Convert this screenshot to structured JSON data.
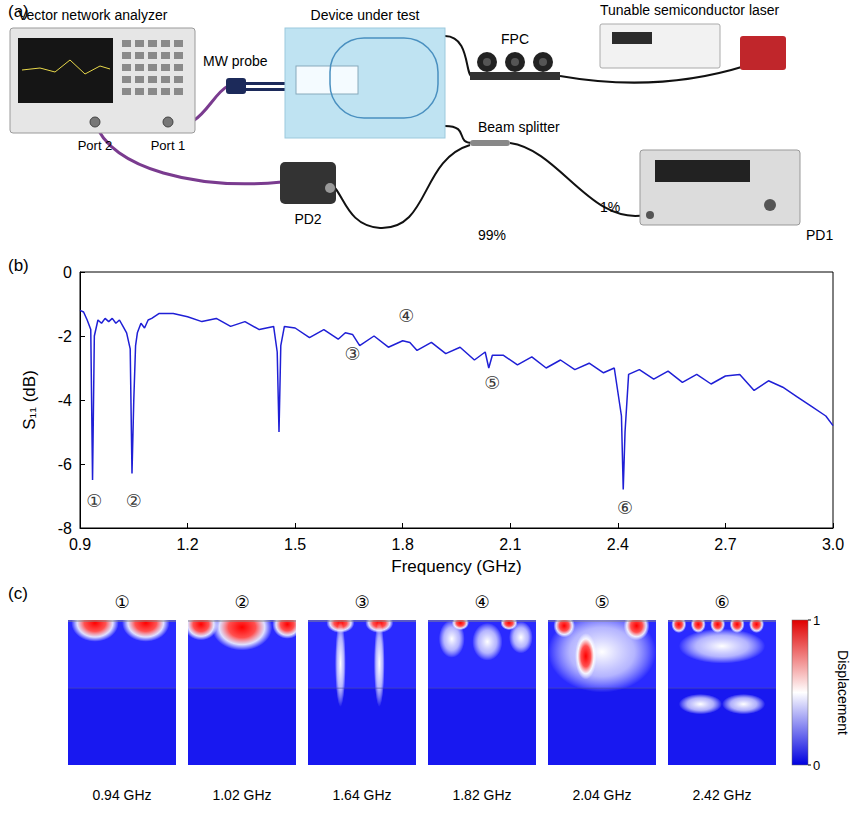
{
  "panel_labels": {
    "a": "(a)",
    "b": "(b)",
    "c": "(c)"
  },
  "setup": {
    "vna": "Vector network analyzer",
    "port2": "Port 2",
    "port1": "Port 1",
    "probe": "MW probe",
    "dut": "Device under test",
    "fpc": "FPC",
    "laser": "Tunable semiconductor laser",
    "splitter": "Beam splitter",
    "pd2": "PD2",
    "pd1": "PD1",
    "split_high": "99%",
    "split_low": "1%"
  },
  "chart_data": {
    "type": "line",
    "x_label": "Frequency (GHz)",
    "y_label": "S₁₁ (dB)",
    "xlim": [
      0.9,
      3.0
    ],
    "xticks": [
      0.9,
      1.2,
      1.5,
      1.8,
      2.1,
      2.4,
      2.7,
      {
        "value": 3.0,
        "label": "3.0"
      }
    ],
    "ylim": [
      -8,
      0
    ],
    "yticks": [
      -8,
      -6,
      -4,
      -2,
      0
    ],
    "grid": false,
    "series": [
      {
        "color": "#1f1fd6",
        "x": [
          0.9,
          0.91,
          0.92,
          0.93,
          0.935,
          0.94,
          0.95,
          0.96,
          0.97,
          0.98,
          0.99,
          1.0,
          1.01,
          1.02,
          1.03,
          1.04,
          1.045,
          1.05,
          1.055,
          1.06,
          1.07,
          1.08,
          1.09,
          1.1,
          1.12,
          1.14,
          1.16,
          1.2,
          1.24,
          1.28,
          1.32,
          1.36,
          1.4,
          1.44,
          1.45,
          1.455,
          1.46,
          1.47,
          1.5,
          1.54,
          1.58,
          1.62,
          1.64,
          1.66,
          1.68,
          1.72,
          1.76,
          1.8,
          1.82,
          1.84,
          1.88,
          1.92,
          1.96,
          2.0,
          2.03,
          2.04,
          2.05,
          2.08,
          2.12,
          2.16,
          2.2,
          2.24,
          2.28,
          2.32,
          2.36,
          2.39,
          2.41,
          2.415,
          2.42,
          2.43,
          2.46,
          2.5,
          2.54,
          2.58,
          2.62,
          2.66,
          2.7,
          2.74,
          2.78,
          2.82,
          2.86,
          2.9,
          2.94,
          2.98,
          3.0
        ],
        "values": [
          -1.2,
          -1.25,
          -1.5,
          -1.8,
          -6.5,
          -2.0,
          -1.5,
          -1.6,
          -1.45,
          -1.55,
          -1.45,
          -1.6,
          -1.5,
          -1.7,
          -1.9,
          -2.4,
          -6.3,
          -4.0,
          -2.3,
          -1.9,
          -1.6,
          -1.75,
          -1.5,
          -1.45,
          -1.3,
          -1.3,
          -1.3,
          -1.4,
          -1.55,
          -1.45,
          -1.7,
          -1.55,
          -1.8,
          -1.7,
          -2.5,
          -5.0,
          -2.3,
          -1.7,
          -1.75,
          -2.05,
          -1.8,
          -2.1,
          -1.9,
          -1.95,
          -2.3,
          -2.0,
          -2.35,
          -2.15,
          -2.2,
          -2.45,
          -2.2,
          -2.55,
          -2.35,
          -2.75,
          -2.5,
          -3.0,
          -2.6,
          -2.6,
          -2.9,
          -2.65,
          -3.0,
          -2.75,
          -3.05,
          -2.85,
          -3.15,
          -3.0,
          -4.5,
          -6.8,
          -5.0,
          -3.2,
          -3.05,
          -3.35,
          -3.1,
          -3.45,
          -3.2,
          -3.5,
          -3.25,
          -3.2,
          -3.7,
          -3.4,
          -3.6,
          -3.9,
          -4.2,
          -4.5,
          -4.8
        ]
      }
    ],
    "annotations": [
      {
        "text": "①",
        "x": 0.94,
        "y": -7.15
      },
      {
        "text": "②",
        "x": 1.05,
        "y": -7.15
      },
      {
        "text": "③",
        "x": 1.66,
        "y": -2.55
      },
      {
        "text": "④",
        "x": 1.81,
        "y": -1.35
      },
      {
        "text": "⑤",
        "x": 2.05,
        "y": -3.45
      },
      {
        "text": "⑥",
        "x": 2.42,
        "y": -7.35
      }
    ]
  },
  "modes": {
    "items": [
      {
        "label": "①",
        "frequency": "0.94 GHz"
      },
      {
        "label": "②",
        "frequency": "1.02 GHz"
      },
      {
        "label": "③",
        "frequency": "1.64 GHz"
      },
      {
        "label": "④",
        "frequency": "1.82 GHz"
      },
      {
        "label": "⑤",
        "frequency": "2.04 GHz"
      },
      {
        "label": "⑥",
        "frequency": "2.42 GHz"
      }
    ],
    "colorbar": {
      "title": "Displacement",
      "range": [
        0,
        1
      ],
      "ticks": [
        0,
        1
      ]
    }
  }
}
